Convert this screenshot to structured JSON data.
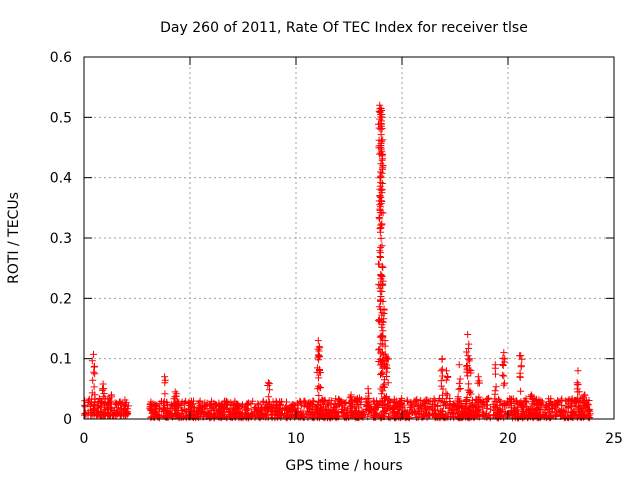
{
  "chart_data": {
    "type": "scatter",
    "title": "Day 260 of 2011, Rate Of TEC Index for receiver tlse",
    "xlabel": "GPS time / hours",
    "ylabel": "ROTI / TECUs",
    "xlim": [
      0,
      25
    ],
    "ylim": [
      0,
      0.6
    ],
    "xticks": [
      0,
      5,
      10,
      15,
      20,
      25
    ],
    "yticks": [
      0,
      0.1,
      0.2,
      0.3,
      0.4,
      0.5,
      0.6
    ],
    "ytick_labels": [
      "0",
      "0.1",
      "0.2",
      "0.3",
      "0.4",
      "0.5",
      "0.6"
    ],
    "grid": true,
    "marker": "+",
    "series_color": "#ff0000",
    "baseline_segments": [
      {
        "x": [
          0.0,
          2.1
        ],
        "y_min": 0.005,
        "y_max": 0.035
      },
      {
        "x": [
          3.1,
          11.2
        ],
        "y_min": 0.002,
        "y_max": 0.03
      },
      {
        "x": [
          11.2,
          23.9
        ],
        "y_min": 0.002,
        "y_max": 0.035
      }
    ],
    "spikes": [
      {
        "x": 0.45,
        "y": 0.107
      },
      {
        "x": 0.9,
        "y": 0.058
      },
      {
        "x": 1.3,
        "y": 0.04
      },
      {
        "x": 3.8,
        "y": 0.07
      },
      {
        "x": 4.3,
        "y": 0.045
      },
      {
        "x": 8.7,
        "y": 0.06
      },
      {
        "x": 11.05,
        "y": 0.13
      },
      {
        "x": 11.1,
        "y": 0.12
      },
      {
        "x": 12.6,
        "y": 0.04
      },
      {
        "x": 13.4,
        "y": 0.05
      },
      {
        "x": 13.95,
        "y": 0.52
      },
      {
        "x": 14.0,
        "y": 0.515
      },
      {
        "x": 14.05,
        "y": 0.5
      },
      {
        "x": 14.1,
        "y": 0.195
      },
      {
        "x": 14.2,
        "y": 0.13
      },
      {
        "x": 14.3,
        "y": 0.1
      },
      {
        "x": 16.9,
        "y": 0.1
      },
      {
        "x": 17.1,
        "y": 0.08
      },
      {
        "x": 17.7,
        "y": 0.09
      },
      {
        "x": 18.1,
        "y": 0.14
      },
      {
        "x": 18.2,
        "y": 0.1
      },
      {
        "x": 18.6,
        "y": 0.07
      },
      {
        "x": 19.4,
        "y": 0.09
      },
      {
        "x": 19.8,
        "y": 0.11
      },
      {
        "x": 20.6,
        "y": 0.105
      },
      {
        "x": 21.1,
        "y": 0.04
      },
      {
        "x": 23.3,
        "y": 0.08
      },
      {
        "x": 23.6,
        "y": 0.04
      }
    ]
  }
}
